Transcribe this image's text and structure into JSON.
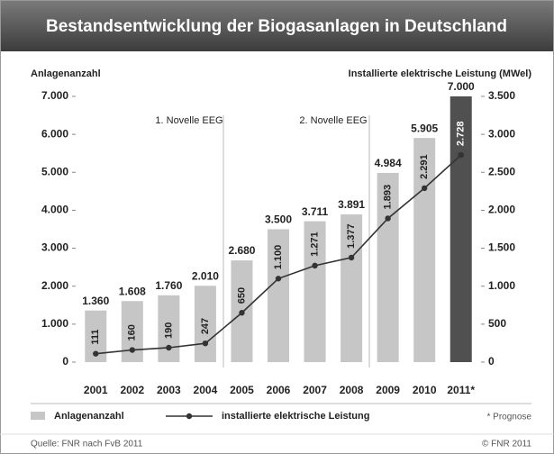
{
  "chart_data": {
    "type": "bar_line",
    "title": "Bestandsentwicklung der Biogasanlagen in Deutschland",
    "y_label": "Anlagenanzahl",
    "y2_label": "Installierte elektrische Leistung (MWel)",
    "categories": [
      "2001",
      "2002",
      "2003",
      "2004",
      "2005",
      "2006",
      "2007",
      "2008",
      "2009",
      "2010",
      "2011*"
    ],
    "series": [
      {
        "name": "Anlagenanzahl",
        "type": "bar",
        "color": "#c6c6c6",
        "colors": [
          "#c6c6c6",
          "#c6c6c6",
          "#c6c6c6",
          "#c6c6c6",
          "#c6c6c6",
          "#c6c6c6",
          "#c6c6c6",
          "#c6c6c6",
          "#c6c6c6",
          "#c6c6c6",
          "#505050"
        ],
        "values": [
          1360,
          1608,
          1760,
          2010,
          2680,
          3500,
          3711,
          3891,
          4984,
          5905,
          7000
        ],
        "value_labels": [
          "1.360",
          "1.608",
          "1.760",
          "2.010",
          "2.680",
          "3.500",
          "3.711",
          "3.891",
          "4.984",
          "5.905",
          "7.000"
        ]
      },
      {
        "name": "installierte elektrische Leistung",
        "type": "line",
        "axis": "y2",
        "color": "#333333",
        "values": [
          111,
          160,
          190,
          247,
          650,
          1100,
          1271,
          1377,
          1893,
          2291,
          2728
        ],
        "value_labels": [
          "111",
          "160",
          "190",
          "247",
          "650",
          "1.100",
          "1.271",
          "1.377",
          "1.893",
          "2.291",
          "2.728"
        ]
      }
    ],
    "ylim": [
      0,
      7000
    ],
    "yticks": [
      0,
      {
        "value": 1000,
        "label": "1.000"
      },
      {
        "value": 2000,
        "label": "2.000"
      },
      {
        "value": 3000,
        "label": "3.000"
      },
      {
        "value": 4000,
        "label": "4.000"
      },
      {
        "value": 5000,
        "label": "5.000"
      },
      {
        "value": 6000,
        "label": "6.000"
      },
      {
        "value": 7000,
        "label": "7.000"
      }
    ],
    "y2lim": [
      0,
      3500
    ],
    "y2ticks": [
      0,
      500,
      {
        "value": 1000,
        "label": "1.000"
      },
      {
        "value": 1500,
        "label": "1.500"
      },
      {
        "value": 2000,
        "label": "2.000"
      },
      {
        "value": 2500,
        "label": "2.500"
      },
      {
        "value": 3000,
        "label": "3.000"
      },
      {
        "value": 3500,
        "label": "3.500"
      }
    ],
    "annotations": [
      "1. Novelle EEG",
      "2. Novelle EEG"
    ],
    "note": "* Prognose",
    "source": "Quelle: FNR nach FvB 2011",
    "copyright": "© FNR 2011"
  }
}
